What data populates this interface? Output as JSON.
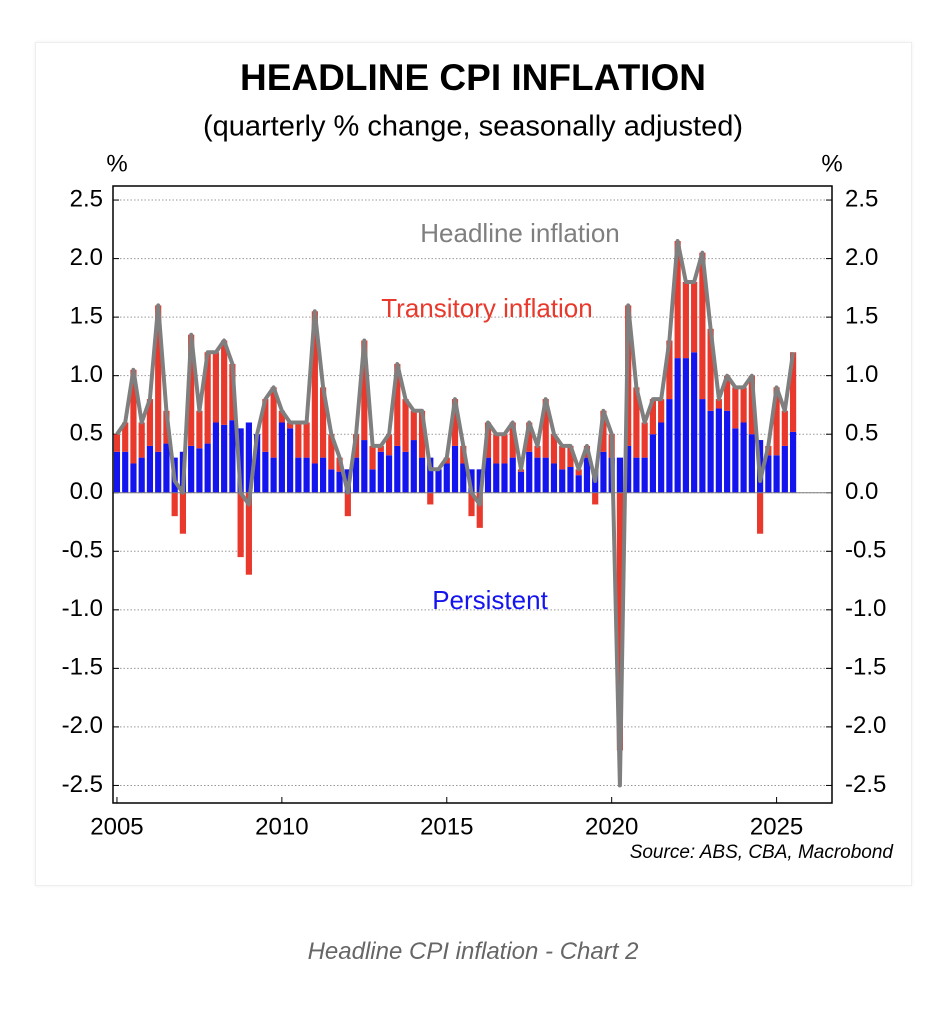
{
  "chart_data": {
    "type": "bar",
    "title": "HEADLINE CPI INFLATION",
    "subtitle": "(quarterly % change, seasonally adjusted)",
    "y_unit": "%",
    "y2_unit": "%",
    "source": "Source: ABS, CBA, Macrobond",
    "x": [
      2005,
      2005.25,
      2005.5,
      2005.75,
      2006,
      2006.25,
      2006.5,
      2006.75,
      2007,
      2007.25,
      2007.5,
      2007.75,
      2008,
      2008.25,
      2008.5,
      2008.75,
      2009,
      2009.25,
      2009.5,
      2009.75,
      2010,
      2010.25,
      2010.5,
      2010.75,
      2011,
      2011.25,
      2011.5,
      2011.75,
      2012,
      2012.25,
      2012.5,
      2012.75,
      2013,
      2013.25,
      2013.5,
      2013.75,
      2014,
      2014.25,
      2014.5,
      2014.75,
      2015,
      2015.25,
      2015.5,
      2015.75,
      2016,
      2016.25,
      2016.5,
      2016.75,
      2017,
      2017.25,
      2017.5,
      2017.75,
      2018,
      2018.25,
      2018.5,
      2018.75,
      2019,
      2019.25,
      2019.5,
      2019.75,
      2020,
      2020.25,
      2020.5,
      2020.75,
      2021,
      2021.25,
      2021.5,
      2021.75,
      2022,
      2022.25,
      2022.5,
      2022.75,
      2023,
      2023.25,
      2023.5,
      2023.75,
      2024,
      2024.25,
      2024.5,
      2024.75,
      2025,
      2025.25,
      2025.5
    ],
    "series": [
      {
        "name": "Persistent",
        "color": "#1414ee",
        "kind": "bar",
        "values": [
          0.35,
          0.35,
          0.25,
          0.3,
          0.4,
          0.35,
          0.42,
          0.3,
          0.35,
          0.4,
          0.38,
          0.42,
          0.6,
          0.58,
          0.62,
          0.55,
          0.6,
          0.5,
          0.35,
          0.3,
          0.6,
          0.55,
          0.3,
          0.3,
          0.25,
          0.3,
          0.2,
          0.18,
          0.2,
          0.3,
          0.45,
          0.2,
          0.35,
          0.32,
          0.4,
          0.35,
          0.45,
          0.3,
          0.3,
          0.2,
          0.25,
          0.4,
          0.25,
          0.2,
          0.2,
          0.3,
          0.25,
          0.25,
          0.3,
          0.18,
          0.35,
          0.3,
          0.3,
          0.25,
          0.2,
          0.22,
          0.15,
          0.3,
          0.2,
          0.35,
          0.3,
          0.3,
          0.4,
          0.3,
          0.3,
          0.5,
          0.6,
          0.8,
          1.15,
          1.15,
          1.2,
          0.8,
          0.7,
          0.72,
          0.7,
          0.55,
          0.6,
          0.5,
          0.45,
          0.32,
          0.32,
          0.4,
          0.52
        ]
      },
      {
        "name": "Transitory inflation",
        "color": "#e8392c",
        "kind": "bar",
        "values": [
          0.15,
          0.25,
          0.8,
          0.3,
          0.4,
          1.25,
          0.28,
          -0.2,
          -0.35,
          0.95,
          0.32,
          0.78,
          0.6,
          0.72,
          0.48,
          -0.55,
          -0.7,
          0,
          0.45,
          0.6,
          0.1,
          0.05,
          0.3,
          0.3,
          1.3,
          0.6,
          0.3,
          0.12,
          -0.2,
          0.2,
          0.85,
          0.2,
          0.05,
          0.18,
          0.7,
          0.45,
          0.25,
          0.4,
          -0.1,
          0,
          0.05,
          0.4,
          0.15,
          -0.2,
          -0.3,
          0.3,
          0.25,
          0.25,
          0.3,
          0.02,
          0.25,
          0.1,
          0.5,
          0.25,
          0.2,
          0.18,
          0.05,
          0.1,
          -0.1,
          0.35,
          0.2,
          -2.2,
          1.2,
          0.6,
          0.3,
          0.3,
          0.2,
          0.5,
          1.0,
          0.65,
          0.6,
          1.25,
          0.7,
          0.08,
          0.3,
          0.35,
          0.3,
          0.5,
          -0.35,
          0.08,
          0.58,
          0.3,
          0.68
        ]
      },
      {
        "name": "Headline inflation",
        "color": "#7f7f7f",
        "kind": "line",
        "values": [
          0.5,
          0.6,
          1.05,
          0.6,
          0.8,
          1.6,
          0.7,
          0.1,
          0.0,
          1.35,
          0.7,
          1.2,
          1.2,
          1.3,
          1.1,
          0.0,
          -0.1,
          0.5,
          0.8,
          0.9,
          0.7,
          0.6,
          0.6,
          0.6,
          1.55,
          0.9,
          0.5,
          0.3,
          0.0,
          0.5,
          1.3,
          0.4,
          0.4,
          0.5,
          1.1,
          0.8,
          0.7,
          0.7,
          0.2,
          0.2,
          0.3,
          0.8,
          0.4,
          0.0,
          -0.1,
          0.6,
          0.5,
          0.5,
          0.6,
          0.2,
          0.6,
          0.4,
          0.8,
          0.5,
          0.4,
          0.4,
          0.2,
          0.4,
          0.1,
          0.7,
          0.5,
          -2.5,
          1.6,
          0.9,
          0.6,
          0.8,
          0.8,
          1.3,
          2.15,
          1.8,
          1.8,
          2.05,
          1.4,
          0.8,
          1.0,
          0.9,
          0.9,
          1.0,
          0.1,
          0.4,
          0.9,
          0.7,
          1.2
        ]
      }
    ],
    "xlim": [
      2004.88,
      2026.68
    ],
    "xticks": [
      2005,
      2010,
      2015,
      2020,
      2025
    ],
    "ylim": [
      -2.65,
      2.62
    ],
    "yticks": [
      -2.5,
      {
        "value": -2,
        "label": "-2.0"
      },
      -1.5,
      {
        "value": -1,
        "label": "-1.0"
      },
      -0.5,
      {
        "value": 0,
        "label": "0.0"
      },
      0.5,
      {
        "value": 1,
        "label": "1.0"
      },
      1.5,
      {
        "value": 2,
        "label": "2.0"
      },
      2.5
    ],
    "y2lim": [
      -2.65,
      2.62
    ],
    "y2ticks": [
      -2.5,
      {
        "value": -2,
        "label": "-2.0"
      },
      -1.5,
      {
        "value": -1,
        "label": "-1.0"
      },
      -0.5,
      {
        "value": 0,
        "label": "0.0"
      },
      0.5,
      {
        "value": 1,
        "label": "1.0"
      },
      1.5,
      {
        "value": 2,
        "label": "2.0"
      },
      2.5
    ],
    "grid": true
  },
  "caption": "Headline CPI inflation - Chart 2"
}
